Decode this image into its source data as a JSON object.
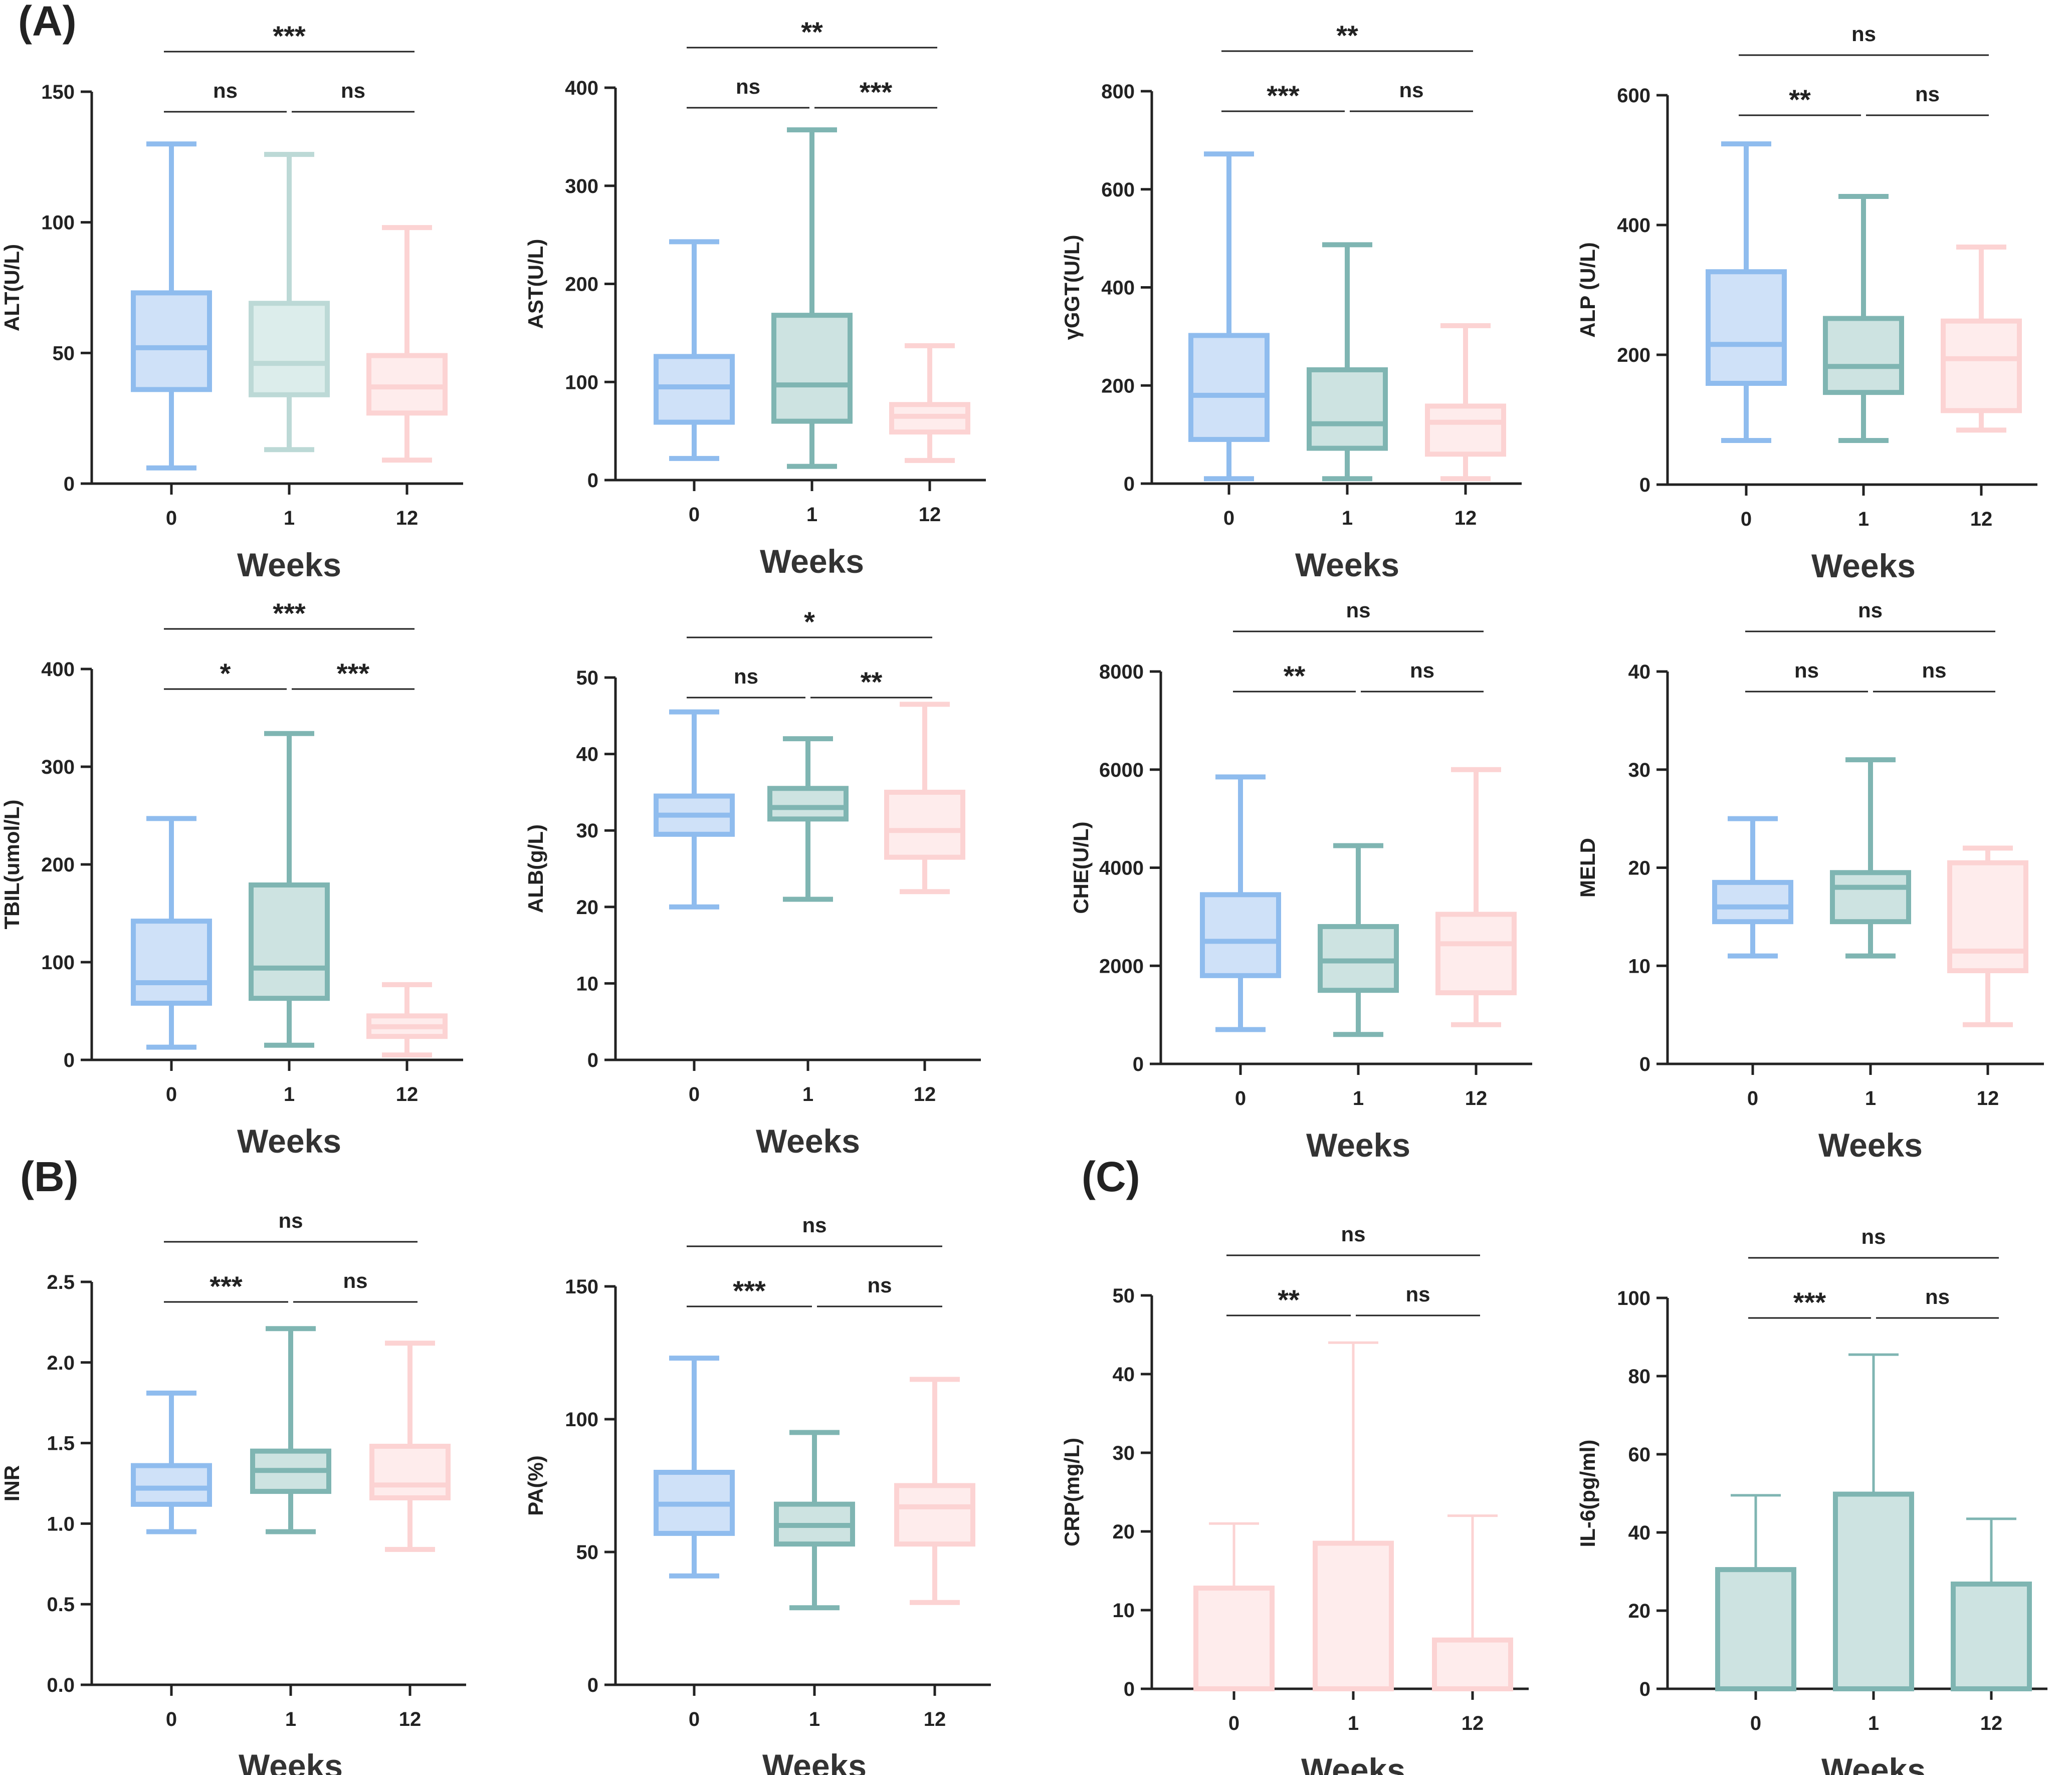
{
  "panel_labels": [
    "(A)",
    "(B)",
    "(C)"
  ],
  "colors": {
    "blue": "#8fbcee",
    "teal": "#7fb5b2",
    "pink": "#fcd3d3",
    "blue_fill": "#cfe1f8",
    "teal_fill": "#cde3e1",
    "pink_fill": "#feecec",
    "axis": "#222222"
  },
  "chart_data": [
    {
      "type": "box",
      "ylabel": "ALT(U/L)",
      "xlabel": "Weeks",
      "categories": [
        "0",
        "1",
        "12"
      ],
      "ylim": [
        0,
        150
      ],
      "yticks": [
        0,
        50,
        100,
        150
      ],
      "series": [
        {
          "name": "0",
          "color": "blue",
          "min": 6,
          "q1": 36,
          "median": 52,
          "q3": 73,
          "max": 130
        },
        {
          "name": "1",
          "color": "teal_light",
          "min": 13,
          "q1": 34,
          "median": 46,
          "q3": 69,
          "max": 126
        },
        {
          "name": "12",
          "color": "pink",
          "min": 9,
          "q1": 27,
          "median": 37,
          "q3": 49,
          "max": 98
        }
      ],
      "significance": [
        {
          "from": 0,
          "to": 1,
          "label": "ns",
          "level": 1
        },
        {
          "from": 1,
          "to": 2,
          "label": "ns",
          "level": 1
        },
        {
          "from": 0,
          "to": 2,
          "label": "***",
          "level": 2
        }
      ]
    },
    {
      "type": "box",
      "ylabel": "AST(U/L)",
      "xlabel": "Weeks",
      "categories": [
        "0",
        "1",
        "12"
      ],
      "ylim": [
        0,
        400
      ],
      "yticks": [
        0,
        100,
        200,
        300,
        400
      ],
      "series": [
        {
          "name": "0",
          "color": "blue",
          "min": 22,
          "q1": 59,
          "median": 95,
          "q3": 126,
          "max": 243
        },
        {
          "name": "1",
          "color": "teal",
          "min": 14,
          "q1": 60,
          "median": 97,
          "q3": 168,
          "max": 357
        },
        {
          "name": "12",
          "color": "pink",
          "min": 20,
          "q1": 49,
          "median": 65,
          "q3": 77,
          "max": 137
        }
      ],
      "significance": [
        {
          "from": 0,
          "to": 1,
          "label": "ns",
          "level": 1
        },
        {
          "from": 1,
          "to": 2,
          "label": "***",
          "level": 1
        },
        {
          "from": 0,
          "to": 2,
          "label": "**",
          "level": 2
        }
      ]
    },
    {
      "type": "box",
      "ylabel": "γGGT(U/L)",
      "xlabel": "Weeks",
      "categories": [
        "0",
        "1",
        "12"
      ],
      "ylim": [
        0,
        800
      ],
      "yticks": [
        0,
        200,
        400,
        600,
        800
      ],
      "series": [
        {
          "name": "0",
          "color": "blue",
          "min": 10,
          "q1": 90,
          "median": 180,
          "q3": 302,
          "max": 672
        },
        {
          "name": "1",
          "color": "teal",
          "min": 10,
          "q1": 72,
          "median": 122,
          "q3": 232,
          "max": 487
        },
        {
          "name": "12",
          "color": "pink",
          "min": 10,
          "q1": 60,
          "median": 125,
          "q3": 158,
          "max": 322
        }
      ],
      "significance": [
        {
          "from": 0,
          "to": 1,
          "label": "***",
          "level": 1
        },
        {
          "from": 1,
          "to": 2,
          "label": "ns",
          "level": 1
        },
        {
          "from": 0,
          "to": 2,
          "label": "**",
          "level": 2
        }
      ]
    },
    {
      "type": "box",
      "ylabel": "ALP (U/L)",
      "xlabel": "Weeks",
      "categories": [
        "0",
        "1",
        "12"
      ],
      "ylim": [
        0,
        600
      ],
      "yticks": [
        0,
        200,
        400,
        600
      ],
      "series": [
        {
          "name": "0",
          "color": "blue",
          "min": 68,
          "q1": 156,
          "median": 216,
          "q3": 328,
          "max": 525
        },
        {
          "name": "1",
          "color": "teal",
          "min": 68,
          "q1": 142,
          "median": 182,
          "q3": 256,
          "max": 444
        },
        {
          "name": "12",
          "color": "pink",
          "min": 84,
          "q1": 114,
          "median": 194,
          "q3": 252,
          "max": 366
        }
      ],
      "significance": [
        {
          "from": 0,
          "to": 1,
          "label": "**",
          "level": 1
        },
        {
          "from": 1,
          "to": 2,
          "label": "ns",
          "level": 1
        },
        {
          "from": 0,
          "to": 2,
          "label": "ns",
          "level": 2
        }
      ]
    },
    {
      "type": "box",
      "ylabel": "TBIL(umol/L)",
      "xlabel": "Weeks",
      "categories": [
        "0",
        "1",
        "12"
      ],
      "ylim": [
        0,
        400
      ],
      "yticks": [
        0,
        100,
        200,
        300,
        400
      ],
      "series": [
        {
          "name": "0",
          "color": "blue",
          "min": 13,
          "q1": 58,
          "median": 79,
          "q3": 142,
          "max": 247
        },
        {
          "name": "1",
          "color": "teal",
          "min": 15,
          "q1": 63,
          "median": 94,
          "q3": 179,
          "max": 334
        },
        {
          "name": "12",
          "color": "pink",
          "min": 5,
          "q1": 24,
          "median": 34,
          "q3": 45,
          "max": 77
        }
      ],
      "significance": [
        {
          "from": 0,
          "to": 1,
          "label": "*",
          "level": 1
        },
        {
          "from": 1,
          "to": 2,
          "label": "***",
          "level": 1
        },
        {
          "from": 0,
          "to": 2,
          "label": "***",
          "level": 2
        }
      ]
    },
    {
      "type": "box",
      "ylabel": "ALB(g/L)",
      "xlabel": "Weeks",
      "categories": [
        "0",
        "1",
        "12"
      ],
      "ylim": [
        0,
        50
      ],
      "yticks": [
        0,
        10,
        20,
        30,
        40,
        50
      ],
      "series": [
        {
          "name": "0",
          "color": "blue",
          "min": 20,
          "q1": 29.5,
          "median": 32,
          "q3": 34.5,
          "max": 45.5
        },
        {
          "name": "1",
          "color": "teal",
          "min": 21,
          "q1": 31.5,
          "median": 33,
          "q3": 35.5,
          "max": 42
        },
        {
          "name": "12",
          "color": "pink",
          "min": 22,
          "q1": 26.5,
          "median": 30,
          "q3": 35,
          "max": 46.5
        }
      ],
      "significance": [
        {
          "from": 0,
          "to": 1,
          "label": "ns",
          "level": 1
        },
        {
          "from": 1,
          "to": 2,
          "label": "**",
          "level": 1
        },
        {
          "from": 0,
          "to": 2,
          "label": "*",
          "level": 2
        }
      ]
    },
    {
      "type": "box",
      "ylabel": "CHE(U/L)",
      "xlabel": "Weeks",
      "categories": [
        "0",
        "1",
        "12"
      ],
      "ylim": [
        0,
        8000
      ],
      "yticks": [
        0,
        2000,
        4000,
        6000,
        8000
      ],
      "series": [
        {
          "name": "0",
          "color": "blue",
          "min": 700,
          "q1": 1800,
          "median": 2500,
          "q3": 3450,
          "max": 5850
        },
        {
          "name": "1",
          "color": "teal",
          "min": 600,
          "q1": 1500,
          "median": 2100,
          "q3": 2800,
          "max": 4450
        },
        {
          "name": "12",
          "color": "pink",
          "min": 800,
          "q1": 1450,
          "median": 2450,
          "q3": 3050,
          "max": 6000
        }
      ],
      "significance": [
        {
          "from": 0,
          "to": 1,
          "label": "**",
          "level": 1
        },
        {
          "from": 1,
          "to": 2,
          "label": "ns",
          "level": 1
        },
        {
          "from": 0,
          "to": 2,
          "label": "ns",
          "level": 2
        }
      ]
    },
    {
      "type": "box",
      "ylabel": "MELD",
      "xlabel": "Weeks",
      "categories": [
        "0",
        "1",
        "12"
      ],
      "ylim": [
        0,
        40
      ],
      "yticks": [
        0,
        10,
        20,
        30,
        40
      ],
      "series": [
        {
          "name": "0",
          "color": "blue",
          "min": 11,
          "q1": 14.5,
          "median": 16,
          "q3": 18.5,
          "max": 25
        },
        {
          "name": "1",
          "color": "teal",
          "min": 11,
          "q1": 14.5,
          "median": 18,
          "q3": 19.5,
          "max": 31
        },
        {
          "name": "12",
          "color": "pink",
          "min": 4,
          "q1": 9.5,
          "median": 11.5,
          "q3": 20.5,
          "max": 22
        }
      ],
      "significance": [
        {
          "from": 0,
          "to": 1,
          "label": "ns",
          "level": 1
        },
        {
          "from": 1,
          "to": 2,
          "label": "ns",
          "level": 1
        },
        {
          "from": 0,
          "to": 2,
          "label": "ns",
          "level": 2
        }
      ]
    },
    {
      "type": "box",
      "ylabel": "INR",
      "xlabel": "Weeks",
      "categories": [
        "0",
        "1",
        "12"
      ],
      "ylim": [
        0,
        2.5
      ],
      "yticks": [
        "0.0",
        "0.5",
        "1.0",
        "1.5",
        "2.0",
        "2.5"
      ],
      "series": [
        {
          "name": "0",
          "color": "blue",
          "min": 0.95,
          "q1": 1.12,
          "median": 1.22,
          "q3": 1.36,
          "max": 1.81
        },
        {
          "name": "1",
          "color": "teal",
          "min": 0.95,
          "q1": 1.2,
          "median": 1.33,
          "q3": 1.45,
          "max": 2.21
        },
        {
          "name": "12",
          "color": "pink",
          "min": 0.84,
          "q1": 1.16,
          "median": 1.24,
          "q3": 1.48,
          "max": 2.12
        }
      ],
      "significance": [
        {
          "from": 0,
          "to": 1,
          "label": "***",
          "level": 1
        },
        {
          "from": 1,
          "to": 2,
          "label": "ns",
          "level": 1
        },
        {
          "from": 0,
          "to": 2,
          "label": "ns",
          "level": 2
        }
      ]
    },
    {
      "type": "box",
      "ylabel": "PA(%)",
      "xlabel": "Weeks",
      "categories": [
        "0",
        "1",
        "12"
      ],
      "ylim": [
        0,
        150
      ],
      "yticks": [
        0,
        50,
        100,
        150
      ],
      "series": [
        {
          "name": "0",
          "color": "blue",
          "min": 41,
          "q1": 57,
          "median": 68,
          "q3": 80,
          "max": 123
        },
        {
          "name": "1",
          "color": "teal",
          "min": 29,
          "q1": 53,
          "median": 60,
          "q3": 68,
          "max": 95
        },
        {
          "name": "12",
          "color": "pink",
          "min": 31,
          "q1": 53,
          "median": 67,
          "q3": 75,
          "max": 115
        }
      ],
      "significance": [
        {
          "from": 0,
          "to": 1,
          "label": "***",
          "level": 1
        },
        {
          "from": 1,
          "to": 2,
          "label": "ns",
          "level": 1
        },
        {
          "from": 0,
          "to": 2,
          "label": "ns",
          "level": 2
        }
      ]
    },
    {
      "type": "bar",
      "ylabel": "CRP(mg/L)",
      "xlabel": "Weeks",
      "categories": [
        "0",
        "1",
        "12"
      ],
      "ylim": [
        0,
        50
      ],
      "yticks": [
        0,
        10,
        20,
        30,
        40,
        50
      ],
      "series": [
        {
          "name": "0",
          "color": "pink",
          "value": 12.8,
          "error_upper": 21
        },
        {
          "name": "1",
          "color": "pink",
          "value": 18.5,
          "error_upper": 44
        },
        {
          "name": "12",
          "color": "pink",
          "value": 6.2,
          "error_upper": 22
        }
      ],
      "significance": [
        {
          "from": 0,
          "to": 1,
          "label": "**",
          "level": 1
        },
        {
          "from": 1,
          "to": 2,
          "label": "ns",
          "level": 1
        },
        {
          "from": 0,
          "to": 2,
          "label": "ns",
          "level": 2
        }
      ]
    },
    {
      "type": "bar",
      "ylabel": "IL-6(pg/ml)",
      "xlabel": "Weeks",
      "categories": [
        "0",
        "1",
        "12"
      ],
      "ylim": [
        0,
        100
      ],
      "yticks": [
        0,
        20,
        40,
        60,
        80,
        100
      ],
      "series": [
        {
          "name": "0",
          "color": "teal",
          "value": 30.5,
          "error_upper": 49.5
        },
        {
          "name": "1",
          "color": "teal",
          "value": 49.8,
          "error_upper": 85.5
        },
        {
          "name": "12",
          "color": "teal",
          "value": 26.8,
          "error_upper": 43.5
        }
      ],
      "significance": [
        {
          "from": 0,
          "to": 1,
          "label": "***",
          "level": 1
        },
        {
          "from": 1,
          "to": 2,
          "label": "ns",
          "level": 1
        },
        {
          "from": 0,
          "to": 2,
          "label": "ns",
          "level": 2
        }
      ]
    }
  ]
}
